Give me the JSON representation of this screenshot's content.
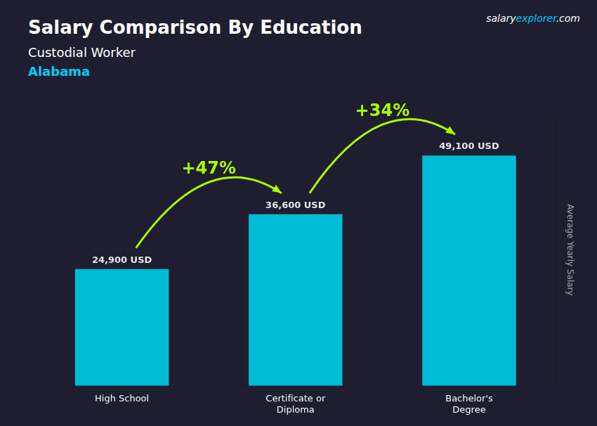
{
  "chart_data": {
    "type": "bar",
    "title": "Salary Comparison By Education",
    "subtitle": "Custodial Worker",
    "categories": [
      "High School",
      "Certificate or\nDiploma",
      "Bachelor's\nDegree"
    ],
    "values": [
      24900,
      36600,
      49100
    ],
    "value_labels": [
      "24,900 USD",
      "36,600 USD",
      "49,100 USD"
    ],
    "data_labels": true,
    "color": "#00bcd4",
    "ylabel": "Average Yearly Salary",
    "ylim": [
      0,
      58000
    ],
    "tick_labels": "x",
    "grid": false,
    "annotations": [
      {
        "text": "Alabama",
        "color": "#00ccff"
      },
      {
        "parts": [
          {
            "text": "salary"
          },
          {
            "text": "explorer",
            "color": "#00ccff"
          },
          {
            "text": ".com"
          }
        ]
      },
      {
        "text": "+47%",
        "color": "#aaff00",
        "arrow": [
          0,
          1
        ]
      },
      {
        "text": "+34%",
        "color": "#aaff00",
        "arrow": [
          1,
          2
        ]
      }
    ]
  }
}
